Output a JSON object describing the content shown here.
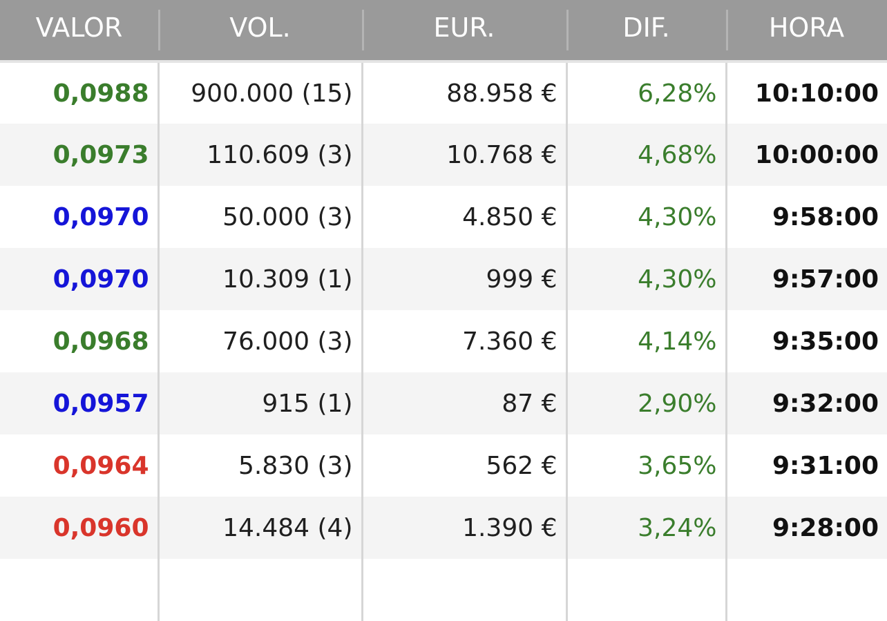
{
  "columns": {
    "valor": "VALOR",
    "vol": "VOL.",
    "eur": "EUR.",
    "dif": "DIF.",
    "hora": "HORA"
  },
  "colors": {
    "up": "#3a7d2c",
    "flat": "#1515d8",
    "down": "#d9352b",
    "header_bg": "#9a9a9a"
  },
  "rows": [
    {
      "valor": "0,0988",
      "trend": "up",
      "vol": "900.000 (15)",
      "eur": "88.958 €",
      "dif": "6,28%",
      "hora": "10:10:00"
    },
    {
      "valor": "0,0973",
      "trend": "up",
      "vol": "110.609 (3)",
      "eur": "10.768 €",
      "dif": "4,68%",
      "hora": "10:00:00"
    },
    {
      "valor": "0,0970",
      "trend": "flat",
      "vol": "50.000 (3)",
      "eur": "4.850 €",
      "dif": "4,30%",
      "hora": "9:58:00"
    },
    {
      "valor": "0,0970",
      "trend": "flat",
      "vol": "10.309 (1)",
      "eur": "999 €",
      "dif": "4,30%",
      "hora": "9:57:00"
    },
    {
      "valor": "0,0968",
      "trend": "up",
      "vol": "76.000 (3)",
      "eur": "7.360 €",
      "dif": "4,14%",
      "hora": "9:35:00"
    },
    {
      "valor": "0,0957",
      "trend": "flat",
      "vol": "915 (1)",
      "eur": "87 €",
      "dif": "2,90%",
      "hora": "9:32:00"
    },
    {
      "valor": "0,0964",
      "trend": "down",
      "vol": "5.830 (3)",
      "eur": "562 €",
      "dif": "3,65%",
      "hora": "9:31:00"
    },
    {
      "valor": "0,0960",
      "trend": "down",
      "vol": "14.484 (4)",
      "eur": "1.390 €",
      "dif": "3,24%",
      "hora": "9:28:00"
    }
  ]
}
